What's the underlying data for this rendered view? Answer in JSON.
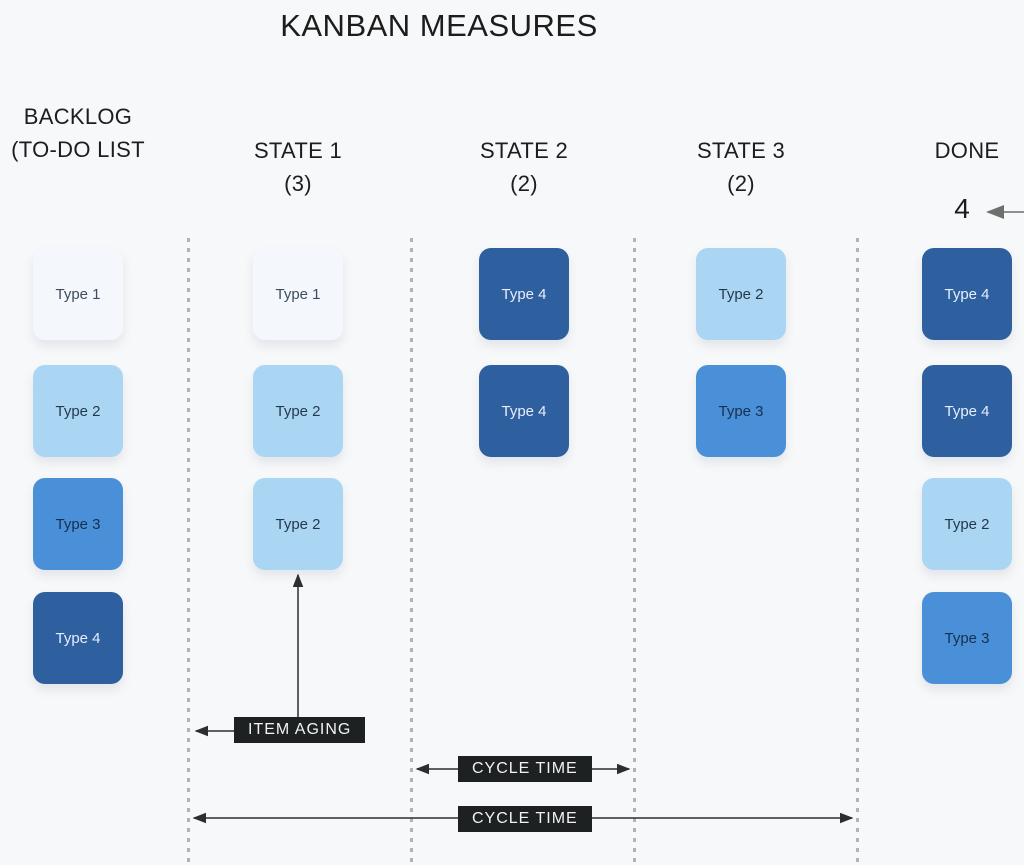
{
  "title": "KANBAN MEASURES",
  "columns": [
    {
      "id": "backlog",
      "header_line1": "BACKLOG",
      "header_line2": "(TO-DO LIST",
      "cards": [
        "type1",
        "type2",
        "type3",
        "type4"
      ]
    },
    {
      "id": "state1",
      "header_line1": "STATE 1",
      "header_line2": "(3)",
      "cards": [
        "type1",
        "type2",
        "type2"
      ]
    },
    {
      "id": "state2",
      "header_line1": "STATE 2",
      "header_line2": "(2)",
      "cards": [
        "type4",
        "type4"
      ]
    },
    {
      "id": "state3",
      "header_line1": "STATE 3",
      "header_line2": "(2)",
      "cards": [
        "type2",
        "type3"
      ]
    },
    {
      "id": "done",
      "header_line1": "DONE",
      "header_line2": "",
      "cards": [
        "type4",
        "type4",
        "type2",
        "type3"
      ]
    }
  ],
  "card_types": {
    "type1": {
      "label": "Type 1",
      "bg": "#f4f8fc",
      "text": "#3e4c5e"
    },
    "type2": {
      "label": "Type 2",
      "bg": "#aad6f4",
      "text": "#26394b"
    },
    "type3": {
      "label": "Type 3",
      "bg": "#4a90d8",
      "text": "#16304d"
    },
    "type4": {
      "label": "Type 4",
      "bg": "#2e5f9f",
      "text": "#e6eefb"
    }
  },
  "annotations": {
    "done_throughput_count": "4",
    "item_aging_label": "ITEM AGING",
    "cycle_time_state_label": "CYCLE TIME",
    "cycle_time_full_label": "CYCLE TIME"
  },
  "colors": {
    "background": "#f7f8f9",
    "title_text": "#1c1c1c",
    "header_text": "#1d1d1d",
    "divider_dotted": "#b3b3b3",
    "annotation_box_bg": "#1d2121",
    "annotation_box_text": "#f2f2f2",
    "arrow": "#2e2e2e",
    "arrow_gray": "#8f8f8f"
  }
}
